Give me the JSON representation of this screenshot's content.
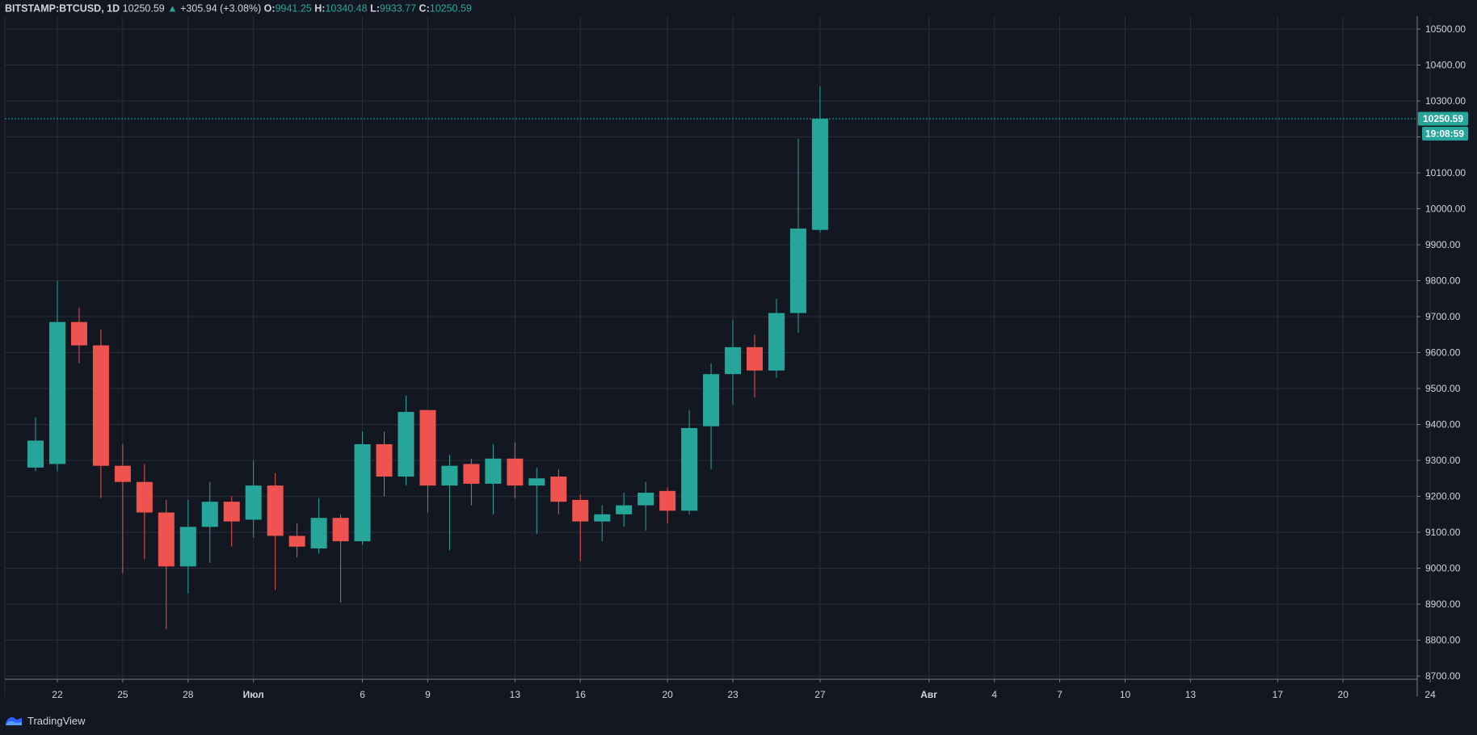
{
  "header": {
    "symbol": "BITSTAMP:BTCUSD, 1D",
    "last": "10250.59",
    "change": "+305.94 (+3.08%)",
    "o_label": "O:",
    "o_value": "9941.25",
    "h_label": "H:",
    "h_value": "10340.48",
    "l_label": "L:",
    "l_value": "9933.77",
    "c_label": "C:",
    "c_value": "10250.59"
  },
  "footer": {
    "brand": "TradingView",
    "logo_icon": "tradingview-logo-icon"
  },
  "price_tag": {
    "price": "10250.59",
    "countdown": "19:08:59"
  },
  "colors": {
    "background": "#131722",
    "grid": "#2a2e39",
    "up": "#26a69a",
    "down": "#ef5350",
    "text": "#d1d4dc",
    "axis_line": "#787b86"
  },
  "chart_data": {
    "type": "candlestick",
    "ylim": [
      8650,
      10550
    ],
    "y_ticks": [
      "10500.00",
      "10400.00",
      "10300.00",
      "10200.00",
      "10100.00",
      "10000.00",
      "9900.00",
      "9800.00",
      "9700.00",
      "9600.00",
      "9500.00",
      "9400.00",
      "9300.00",
      "9200.00",
      "9100.00",
      "9000.00",
      "8900.00",
      "8800.00",
      "8700.00"
    ],
    "x_ticks": [
      {
        "label": "22",
        "day": 1
      },
      {
        "label": "25",
        "day": 4
      },
      {
        "label": "28",
        "day": 7
      },
      {
        "label": "Июл",
        "day": 10
      },
      {
        "label": "6",
        "day": 15
      },
      {
        "label": "9",
        "day": 18
      },
      {
        "label": "13",
        "day": 22
      },
      {
        "label": "16",
        "day": 25
      },
      {
        "label": "20",
        "day": 29
      },
      {
        "label": "23",
        "day": 32
      },
      {
        "label": "27",
        "day": 36
      },
      {
        "label": "Авг",
        "day": 41
      },
      {
        "label": "4",
        "day": 44
      },
      {
        "label": "7",
        "day": 47
      },
      {
        "label": "10",
        "day": 50
      },
      {
        "label": "13",
        "day": 53
      },
      {
        "label": "17",
        "day": 57
      },
      {
        "label": "20",
        "day": 60
      },
      {
        "label": "24",
        "day": 64
      }
    ],
    "candles": [
      {
        "day": 0,
        "o": 9280,
        "h": 9420,
        "l": 9270,
        "c": 9355
      },
      {
        "day": 1,
        "o": 9290,
        "h": 9800,
        "l": 9270,
        "c": 9685
      },
      {
        "day": 2,
        "o": 9685,
        "h": 9725,
        "l": 9570,
        "c": 9620
      },
      {
        "day": 3,
        "o": 9620,
        "h": 9665,
        "l": 9195,
        "c": 9285
      },
      {
        "day": 4,
        "o": 9285,
        "h": 9345,
        "l": 8985,
        "c": 9240
      },
      {
        "day": 5,
        "o": 9240,
        "h": 9290,
        "l": 9025,
        "c": 9155
      },
      {
        "day": 6,
        "o": 9155,
        "h": 9190,
        "l": 8830,
        "c": 9005
      },
      {
        "day": 7,
        "o": 9005,
        "h": 9190,
        "l": 8930,
        "c": 9115
      },
      {
        "day": 8,
        "o": 9115,
        "h": 9240,
        "l": 9015,
        "c": 9185
      },
      {
        "day": 9,
        "o": 9185,
        "h": 9200,
        "l": 9060,
        "c": 9130
      },
      {
        "day": 10,
        "o": 9135,
        "h": 9300,
        "l": 9085,
        "c": 9230
      },
      {
        "day": 11,
        "o": 9230,
        "h": 9265,
        "l": 8940,
        "c": 9090
      },
      {
        "day": 12,
        "o": 9090,
        "h": 9125,
        "l": 9030,
        "c": 9060
      },
      {
        "day": 13,
        "o": 9055,
        "h": 9195,
        "l": 9040,
        "c": 9140
      },
      {
        "day": 14,
        "o": 9140,
        "h": 9150,
        "l": 8905,
        "c": 9075
      },
      {
        "day": 15,
        "o": 9075,
        "h": 9380,
        "l": 9065,
        "c": 9345
      },
      {
        "day": 16,
        "o": 9345,
        "h": 9380,
        "l": 9200,
        "c": 9255
      },
      {
        "day": 17,
        "o": 9255,
        "h": 9480,
        "l": 9230,
        "c": 9435
      },
      {
        "day": 18,
        "o": 9440,
        "h": 9440,
        "l": 9155,
        "c": 9230
      },
      {
        "day": 19,
        "o": 9230,
        "h": 9315,
        "l": 9050,
        "c": 9285
      },
      {
        "day": 20,
        "o": 9290,
        "h": 9305,
        "l": 9175,
        "c": 9235
      },
      {
        "day": 21,
        "o": 9235,
        "h": 9345,
        "l": 9150,
        "c": 9305
      },
      {
        "day": 22,
        "o": 9305,
        "h": 9350,
        "l": 9195,
        "c": 9230
      },
      {
        "day": 23,
        "o": 9230,
        "h": 9280,
        "l": 9095,
        "c": 9250
      },
      {
        "day": 24,
        "o": 9255,
        "h": 9275,
        "l": 9150,
        "c": 9185
      },
      {
        "day": 25,
        "o": 9190,
        "h": 9205,
        "l": 9020,
        "c": 9130
      },
      {
        "day": 26,
        "o": 9130,
        "h": 9175,
        "l": 9075,
        "c": 9150
      },
      {
        "day": 27,
        "o": 9150,
        "h": 9210,
        "l": 9115,
        "c": 9175
      },
      {
        "day": 28,
        "o": 9175,
        "h": 9240,
        "l": 9105,
        "c": 9210
      },
      {
        "day": 29,
        "o": 9215,
        "h": 9225,
        "l": 9125,
        "c": 9160
      },
      {
        "day": 30,
        "o": 9160,
        "h": 9440,
        "l": 9150,
        "c": 9390
      },
      {
        "day": 31,
        "o": 9395,
        "h": 9570,
        "l": 9275,
        "c": 9540
      },
      {
        "day": 32,
        "o": 9540,
        "h": 9690,
        "l": 9455,
        "c": 9615
      },
      {
        "day": 33,
        "o": 9615,
        "h": 9650,
        "l": 9475,
        "c": 9550
      },
      {
        "day": 34,
        "o": 9550,
        "h": 9750,
        "l": 9530,
        "c": 9710
      },
      {
        "day": 35,
        "o": 9710,
        "h": 10195,
        "l": 9655,
        "c": 9945
      },
      {
        "day": 36,
        "o": 9941.25,
        "h": 10340.48,
        "l": 9933.77,
        "c": 10250.59
      }
    ]
  }
}
